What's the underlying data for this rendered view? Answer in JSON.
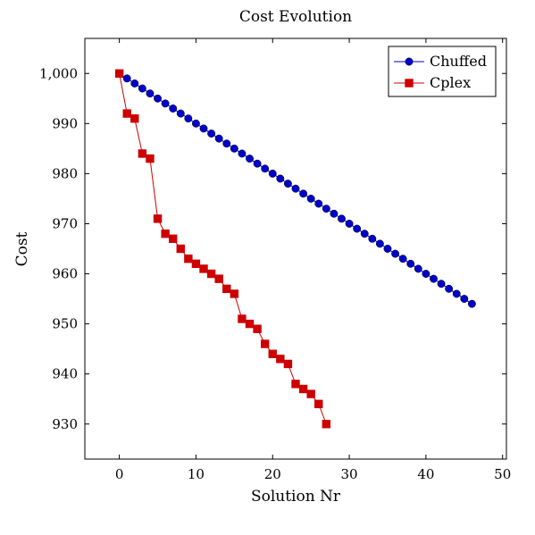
{
  "chart_data": {
    "type": "line",
    "title": "Cost Evolution",
    "xlabel": "Solution Nr",
    "ylabel": "Cost",
    "xlim": [
      -4.5,
      50.5
    ],
    "ylim": [
      923,
      1007
    ],
    "grid": false,
    "legend_position": "top-right",
    "x_ticks": [
      0,
      10,
      20,
      30,
      40,
      50
    ],
    "x_tick_labels": [
      "0",
      "10",
      "20",
      "30",
      "40",
      "50"
    ],
    "y_ticks": [
      930,
      940,
      950,
      960,
      970,
      980,
      990,
      1000
    ],
    "y_tick_labels": [
      "930",
      "940",
      "950",
      "960",
      "970",
      "980",
      "990",
      "1,000"
    ],
    "series": [
      {
        "name": "Chuffed",
        "color": "#0000cc",
        "marker": "circle",
        "x": [
          0,
          1,
          2,
          3,
          4,
          5,
          6,
          7,
          8,
          9,
          10,
          11,
          12,
          13,
          14,
          15,
          16,
          17,
          18,
          19,
          20,
          21,
          22,
          23,
          24,
          25,
          26,
          27,
          28,
          29,
          30,
          31,
          32,
          33,
          34,
          35,
          36,
          37,
          38,
          39,
          40,
          41,
          42,
          43,
          44,
          45,
          46
        ],
        "y": [
          1000,
          999,
          998,
          997,
          996,
          995,
          994,
          993,
          992,
          991,
          990,
          989,
          988,
          987,
          986,
          985,
          984,
          983,
          982,
          981,
          980,
          979,
          978,
          977,
          976,
          975,
          974,
          973,
          972,
          971,
          970,
          969,
          968,
          967,
          966,
          965,
          964,
          963,
          962,
          961,
          960,
          959,
          958,
          957,
          956,
          955,
          954
        ]
      },
      {
        "name": "Cplex",
        "color": "#cc0000",
        "marker": "square",
        "x": [
          0,
          1,
          2,
          3,
          4,
          5,
          6,
          7,
          8,
          9,
          10,
          11,
          12,
          13,
          14,
          15,
          16,
          17,
          18,
          19,
          20,
          21,
          22,
          23,
          24,
          25,
          26,
          27
        ],
        "y": [
          1000,
          992,
          991,
          984,
          983,
          971,
          968,
          967,
          965,
          963,
          962,
          961,
          960,
          959,
          957,
          956,
          951,
          950,
          949,
          946,
          944,
          943,
          942,
          938,
          937,
          936,
          934,
          930
        ]
      }
    ]
  }
}
